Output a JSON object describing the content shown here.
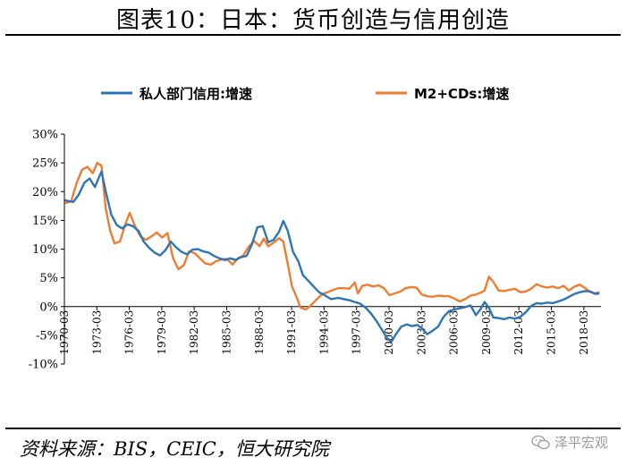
{
  "header": {
    "title": "图表10：日本：货币创造与信用创造"
  },
  "footer": {
    "source": "资料来源：BIS，CEIC，恒大研究院",
    "watermark": "泽平宏观"
  },
  "chart_data": {
    "type": "line",
    "title": "图表10：日本：货币创造与信用创造",
    "xlabel": "",
    "ylabel": "",
    "ylim": [
      -10,
      30
    ],
    "yticks": [
      30,
      25,
      20,
      15,
      10,
      5,
      0,
      -5,
      -10
    ],
    "ytick_labels": [
      "30%",
      "25%",
      "20%",
      "15%",
      "10%",
      "5%",
      "0%",
      "-5%",
      "-10%"
    ],
    "xlim": [
      1970.17,
      2019.75
    ],
    "xticks": [
      "1970-03",
      "1973-03",
      "1976-03",
      "1979-03",
      "1982-03",
      "1985-03",
      "1988-03",
      "1991-03",
      "1994-03",
      "1997-03",
      "2000-03",
      "2003-03",
      "2006-03",
      "2009-03",
      "2012-03",
      "2015-03",
      "2018-03"
    ],
    "grid": false,
    "legend_position": "top",
    "series": [
      {
        "name": "私人部门信用:增速",
        "color": "#2e75b6",
        "points": [
          [
            1970.2,
            18.5
          ],
          [
            1971.0,
            18.2
          ],
          [
            1971.5,
            19.5
          ],
          [
            1972.0,
            21.5
          ],
          [
            1972.5,
            22.3
          ],
          [
            1973.0,
            20.8
          ],
          [
            1973.3,
            22.2
          ],
          [
            1973.6,
            23.5
          ],
          [
            1974.0,
            20.0
          ],
          [
            1974.5,
            16.0
          ],
          [
            1975.0,
            14.2
          ],
          [
            1975.5,
            13.6
          ],
          [
            1976.0,
            14.3
          ],
          [
            1976.5,
            14.0
          ],
          [
            1977.0,
            13.2
          ],
          [
            1977.5,
            11.3
          ],
          [
            1978.0,
            10.2
          ],
          [
            1978.5,
            9.4
          ],
          [
            1979.0,
            8.9
          ],
          [
            1979.5,
            9.8
          ],
          [
            1980.0,
            11.3
          ],
          [
            1980.5,
            10.3
          ],
          [
            1981.0,
            9.5
          ],
          [
            1981.5,
            9.1
          ],
          [
            1982.0,
            9.9
          ],
          [
            1982.5,
            10.0
          ],
          [
            1983.0,
            9.6
          ],
          [
            1983.5,
            9.4
          ],
          [
            1984.0,
            8.8
          ],
          [
            1984.5,
            8.4
          ],
          [
            1985.0,
            8.1
          ],
          [
            1985.5,
            8.4
          ],
          [
            1986.0,
            8.1
          ],
          [
            1986.5,
            8.6
          ],
          [
            1987.0,
            8.8
          ],
          [
            1987.5,
            10.8
          ],
          [
            1988.0,
            13.8
          ],
          [
            1988.5,
            14.0
          ],
          [
            1989.0,
            11.2
          ],
          [
            1989.5,
            11.6
          ],
          [
            1990.0,
            13.0
          ],
          [
            1990.4,
            14.9
          ],
          [
            1990.8,
            13.2
          ],
          [
            1991.3,
            9.5
          ],
          [
            1991.8,
            7.8
          ],
          [
            1992.2,
            5.5
          ],
          [
            1992.7,
            4.5
          ],
          [
            1993.2,
            3.5
          ],
          [
            1993.7,
            2.5
          ],
          [
            1994.2,
            2.0
          ],
          [
            1994.8,
            1.3
          ],
          [
            1995.5,
            1.5
          ],
          [
            1996.0,
            1.3
          ],
          [
            1996.5,
            1.1
          ],
          [
            1997.0,
            0.8
          ],
          [
            1997.5,
            0.5
          ],
          [
            1998.0,
            -0.2
          ],
          [
            1998.5,
            -1.2
          ],
          [
            1999.0,
            -2.5
          ],
          [
            1999.5,
            -4.0
          ],
          [
            2000.0,
            -5.5
          ],
          [
            2000.4,
            -6.1
          ],
          [
            2000.8,
            -4.8
          ],
          [
            2001.3,
            -3.5
          ],
          [
            2001.8,
            -3.1
          ],
          [
            2002.3,
            -3.4
          ],
          [
            2002.8,
            -3.2
          ],
          [
            2003.2,
            -3.8
          ],
          [
            2003.7,
            -4.8
          ],
          [
            2004.2,
            -4.2
          ],
          [
            2004.7,
            -3.5
          ],
          [
            2005.2,
            -1.8
          ],
          [
            2005.7,
            -0.8
          ],
          [
            2006.2,
            -0.5
          ],
          [
            2006.7,
            -0.3
          ],
          [
            2007.2,
            -0.1
          ],
          [
            2007.7,
            0.2
          ],
          [
            2008.2,
            -1.5
          ],
          [
            2008.6,
            -0.5
          ],
          [
            2009.0,
            0.8
          ],
          [
            2009.4,
            -0.2
          ],
          [
            2009.8,
            -1.9
          ],
          [
            2010.3,
            -2.0
          ],
          [
            2010.8,
            -2.2
          ],
          [
            2011.3,
            -1.9
          ],
          [
            2011.8,
            -2.1
          ],
          [
            2012.3,
            -1.8
          ],
          [
            2012.8,
            -1.0
          ],
          [
            2013.3,
            0.1
          ],
          [
            2013.8,
            0.6
          ],
          [
            2014.3,
            0.5
          ],
          [
            2014.8,
            0.7
          ],
          [
            2015.3,
            0.6
          ],
          [
            2015.8,
            0.9
          ],
          [
            2016.3,
            1.2
          ],
          [
            2016.8,
            1.7
          ],
          [
            2017.3,
            2.2
          ],
          [
            2017.8,
            2.5
          ],
          [
            2018.3,
            2.7
          ],
          [
            2018.8,
            2.6
          ],
          [
            2019.2,
            2.2
          ],
          [
            2019.6,
            2.3
          ]
        ]
      },
      {
        "name": "M2+CDs:增速",
        "color": "#ed7d31",
        "points": [
          [
            1970.2,
            18.0
          ],
          [
            1970.8,
            18.3
          ],
          [
            1971.3,
            21.5
          ],
          [
            1971.8,
            23.8
          ],
          [
            1972.3,
            24.3
          ],
          [
            1972.8,
            23.2
          ],
          [
            1973.2,
            25.0
          ],
          [
            1973.6,
            24.5
          ],
          [
            1974.0,
            17.0
          ],
          [
            1974.4,
            13.2
          ],
          [
            1974.8,
            11.0
          ],
          [
            1975.3,
            11.3
          ],
          [
            1975.8,
            14.3
          ],
          [
            1976.2,
            16.3
          ],
          [
            1976.7,
            14.0
          ],
          [
            1977.2,
            12.2
          ],
          [
            1977.7,
            11.6
          ],
          [
            1978.2,
            12.2
          ],
          [
            1978.7,
            12.9
          ],
          [
            1979.2,
            12.0
          ],
          [
            1979.7,
            12.8
          ],
          [
            1980.2,
            8.5
          ],
          [
            1980.7,
            6.5
          ],
          [
            1981.2,
            7.2
          ],
          [
            1981.7,
            9.6
          ],
          [
            1982.2,
            9.3
          ],
          [
            1982.7,
            8.4
          ],
          [
            1983.2,
            7.5
          ],
          [
            1983.7,
            7.3
          ],
          [
            1984.2,
            7.9
          ],
          [
            1984.7,
            8.2
          ],
          [
            1985.2,
            8.3
          ],
          [
            1985.7,
            7.3
          ],
          [
            1986.2,
            8.4
          ],
          [
            1986.7,
            8.9
          ],
          [
            1987.2,
            10.4
          ],
          [
            1987.7,
            11.4
          ],
          [
            1988.2,
            10.5
          ],
          [
            1988.6,
            11.8
          ],
          [
            1989.0,
            10.5
          ],
          [
            1989.5,
            11.1
          ],
          [
            1990.0,
            11.9
          ],
          [
            1990.4,
            11.3
          ],
          [
            1990.8,
            7.5
          ],
          [
            1991.2,
            3.5
          ],
          [
            1991.6,
            1.8
          ],
          [
            1992.0,
            -0.2
          ],
          [
            1992.5,
            -0.5
          ],
          [
            1993.0,
            0.3
          ],
          [
            1993.5,
            1.3
          ],
          [
            1994.0,
            2.2
          ],
          [
            1994.5,
            2.5
          ],
          [
            1995.0,
            2.9
          ],
          [
            1995.5,
            3.2
          ],
          [
            1996.0,
            3.2
          ],
          [
            1996.5,
            3.1
          ],
          [
            1997.0,
            4.2
          ],
          [
            1997.3,
            2.3
          ],
          [
            1997.7,
            3.6
          ],
          [
            1998.2,
            3.8
          ],
          [
            1998.7,
            3.5
          ],
          [
            1999.2,
            3.7
          ],
          [
            1999.7,
            3.2
          ],
          [
            2000.2,
            2.0
          ],
          [
            2000.7,
            2.3
          ],
          [
            2001.2,
            2.6
          ],
          [
            2001.7,
            3.2
          ],
          [
            2002.2,
            3.4
          ],
          [
            2002.7,
            3.3
          ],
          [
            2003.2,
            2.1
          ],
          [
            2003.7,
            1.8
          ],
          [
            2004.2,
            1.7
          ],
          [
            2004.7,
            1.9
          ],
          [
            2005.2,
            1.8
          ],
          [
            2005.7,
            1.8
          ],
          [
            2006.2,
            1.4
          ],
          [
            2006.7,
            0.9
          ],
          [
            2007.2,
            1.3
          ],
          [
            2007.7,
            1.9
          ],
          [
            2008.2,
            2.1
          ],
          [
            2008.6,
            2.4
          ],
          [
            2009.0,
            2.8
          ],
          [
            2009.4,
            5.2
          ],
          [
            2009.8,
            4.3
          ],
          [
            2010.3,
            2.8
          ],
          [
            2010.8,
            2.7
          ],
          [
            2011.3,
            2.9
          ],
          [
            2011.8,
            3.1
          ],
          [
            2012.3,
            2.5
          ],
          [
            2012.8,
            2.6
          ],
          [
            2013.3,
            3.1
          ],
          [
            2013.8,
            3.9
          ],
          [
            2014.3,
            3.5
          ],
          [
            2014.8,
            3.3
          ],
          [
            2015.3,
            3.5
          ],
          [
            2015.8,
            3.2
          ],
          [
            2016.3,
            3.6
          ],
          [
            2016.8,
            2.8
          ],
          [
            2017.3,
            3.5
          ],
          [
            2017.8,
            3.8
          ],
          [
            2018.3,
            3.2
          ],
          [
            2018.8,
            2.5
          ],
          [
            2019.2,
            2.3
          ],
          [
            2019.6,
            2.5
          ]
        ]
      }
    ]
  }
}
